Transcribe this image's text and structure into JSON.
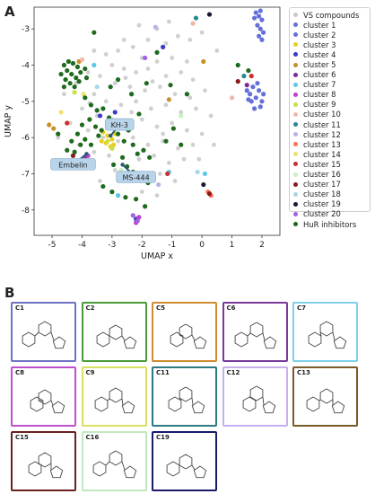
{
  "panels": {
    "a_label": "A",
    "b_label": "B"
  },
  "chart_data": {
    "type": "scatter",
    "title": "",
    "xlabel": "UMAP x",
    "ylabel": "UMAP y",
    "xlim": [
      -5.6,
      2.6
    ],
    "ylim": [
      -8.7,
      -2.4
    ],
    "xticks": [
      -5,
      -4,
      -3,
      -2,
      -1,
      0,
      1,
      2
    ],
    "yticks": [
      -3,
      -4,
      -5,
      -6,
      -7,
      -8
    ],
    "grid": false,
    "legend_position": "right",
    "annotations": [
      {
        "text": "KH-3",
        "x": -2.75,
        "y": -5.65,
        "target": [
          -3.05,
          -5.95
        ]
      },
      {
        "text": "Embelin",
        "x": -4.3,
        "y": -6.75,
        "target": [
          -3.85,
          -6.45
        ]
      },
      {
        "text": "MS-444",
        "x": -2.2,
        "y": -7.1,
        "target": [
          -2.65,
          -6.75
        ]
      }
    ],
    "series": [
      {
        "name": "VS compounds",
        "color": "#c8c8c8",
        "points": [
          [
            -2.1,
            -2.9
          ],
          [
            -1.5,
            -3.0
          ],
          [
            -2.6,
            -3.3
          ],
          [
            -2.3,
            -3.5
          ],
          [
            -1.8,
            -3.3
          ],
          [
            -1.2,
            -3.4
          ],
          [
            -0.8,
            -3.2
          ],
          [
            -0.4,
            -3.3
          ],
          [
            0.0,
            -3.1
          ],
          [
            -2.8,
            -3.6
          ],
          [
            -3.2,
            -3.7
          ],
          [
            -3.6,
            -3.6
          ],
          [
            -2.0,
            -3.8
          ],
          [
            -1.5,
            -3.9
          ],
          [
            -1.0,
            -3.8
          ],
          [
            -0.5,
            -3.9
          ],
          [
            -3.0,
            -4.0
          ],
          [
            -2.6,
            -4.1
          ],
          [
            -2.2,
            -4.2
          ],
          [
            -1.8,
            -4.1
          ],
          [
            -1.2,
            -4.3
          ],
          [
            -0.7,
            -4.2
          ],
          [
            -0.3,
            -4.4
          ],
          [
            -3.4,
            -4.3
          ],
          [
            -3.8,
            -4.2
          ],
          [
            -4.2,
            -4.5
          ],
          [
            -2.9,
            -4.5
          ],
          [
            -2.4,
            -4.6
          ],
          [
            -1.9,
            -4.7
          ],
          [
            -1.4,
            -4.6
          ],
          [
            -0.9,
            -4.8
          ],
          [
            -0.4,
            -4.9
          ],
          [
            0.1,
            -4.7
          ],
          [
            -3.6,
            -4.8
          ],
          [
            -3.2,
            -5.0
          ],
          [
            -2.7,
            -5.1
          ],
          [
            -2.2,
            -5.0
          ],
          [
            -1.7,
            -5.2
          ],
          [
            -1.2,
            -5.1
          ],
          [
            -0.7,
            -5.3
          ],
          [
            -0.2,
            -5.2
          ],
          [
            0.3,
            -5.4
          ],
          [
            -4.0,
            -5.2
          ],
          [
            -3.5,
            -5.4
          ],
          [
            -3.0,
            -5.5
          ],
          [
            -2.5,
            -5.6
          ],
          [
            -2.0,
            -5.5
          ],
          [
            -1.5,
            -5.7
          ],
          [
            -1.0,
            -5.6
          ],
          [
            -0.5,
            -5.8
          ],
          [
            0.0,
            -5.9
          ],
          [
            -4.4,
            -5.6
          ],
          [
            -3.8,
            -5.8
          ],
          [
            -3.3,
            -6.0
          ],
          [
            -2.8,
            -6.1
          ],
          [
            -2.3,
            -6.0
          ],
          [
            -1.8,
            -6.2
          ],
          [
            -1.3,
            -6.1
          ],
          [
            -0.8,
            -6.3
          ],
          [
            -0.3,
            -6.2
          ],
          [
            -4.1,
            -6.2
          ],
          [
            -3.6,
            -6.4
          ],
          [
            -3.1,
            -6.5
          ],
          [
            -2.1,
            -6.6
          ],
          [
            -1.6,
            -6.5
          ],
          [
            -1.1,
            -6.7
          ],
          [
            -0.6,
            -6.6
          ],
          [
            -2.9,
            -6.9
          ],
          [
            -2.4,
            -7.0
          ],
          [
            -1.9,
            -7.1
          ],
          [
            -1.4,
            -7.0
          ],
          [
            -3.4,
            -7.2
          ],
          [
            -2.0,
            -7.5
          ],
          [
            -1.5,
            -7.6
          ],
          [
            -4.6,
            -4.8
          ],
          [
            -1.1,
            -2.8
          ],
          [
            0.5,
            -3.6
          ],
          [
            -0.1,
            -6.6
          ],
          [
            -2.55,
            -4.35
          ],
          [
            -1.65,
            -4.45
          ],
          [
            -2.35,
            -5.3
          ],
          [
            -3.75,
            -5.05
          ],
          [
            -1.3,
            -5.9
          ],
          [
            -0.9,
            -7.2
          ],
          [
            0.4,
            -6.2
          ],
          [
            -4.8,
            -6.0
          ]
        ]
      },
      {
        "name": "cluster 1",
        "color": "#6470d8",
        "points": [
          [
            1.8,
            -2.55
          ],
          [
            1.9,
            -2.65
          ],
          [
            2.0,
            -2.75
          ],
          [
            1.85,
            -2.9
          ],
          [
            1.95,
            -3.0
          ],
          [
            2.05,
            -3.1
          ],
          [
            1.9,
            -3.2
          ],
          [
            2.0,
            -3.3
          ],
          [
            1.95,
            -2.5
          ],
          [
            1.75,
            -2.7
          ]
        ]
      },
      {
        "name": "cluster 2",
        "color": "#6470d8",
        "points": [
          [
            1.5,
            -4.7
          ],
          [
            1.6,
            -4.8
          ],
          [
            1.7,
            -4.6
          ],
          [
            1.8,
            -4.9
          ],
          [
            1.9,
            -4.7
          ],
          [
            2.0,
            -5.0
          ],
          [
            1.65,
            -5.0
          ],
          [
            1.75,
            -5.2
          ],
          [
            1.85,
            -4.5
          ],
          [
            1.55,
            -4.95
          ],
          [
            1.95,
            -5.15
          ],
          [
            2.05,
            -4.8
          ]
        ]
      },
      {
        "name": "cluster 3",
        "color": "#e8d020",
        "points": [
          [
            -3.3,
            -5.85
          ],
          [
            -3.15,
            -5.95
          ],
          [
            -3.0,
            -6.05
          ],
          [
            -3.2,
            -6.15
          ],
          [
            -3.05,
            -6.25
          ],
          [
            -2.9,
            -5.9
          ],
          [
            -3.35,
            -6.1
          ],
          [
            -2.95,
            -6.2
          ]
        ]
      },
      {
        "name": "cluster 4",
        "color": "#3a3ac8",
        "points": [
          [
            -2.9,
            -5.3
          ],
          [
            -3.4,
            -5.4
          ],
          [
            -1.3,
            -3.5
          ],
          [
            -2.2,
            -8.25
          ]
        ]
      },
      {
        "name": "cluster 5",
        "color": "#c89028",
        "points": [
          [
            -4.1,
            -3.9
          ],
          [
            -5.1,
            -5.65
          ],
          [
            -4.95,
            -5.75
          ],
          [
            0.05,
            -3.9
          ],
          [
            -1.1,
            -4.95
          ]
        ]
      },
      {
        "name": "cluster 6",
        "color": "#7c2a9a",
        "points": [
          [
            -3.9,
            -6.55
          ],
          [
            -3.75,
            -6.65
          ],
          [
            -3.85,
            -6.75
          ],
          [
            1.5,
            -4.55
          ]
        ]
      },
      {
        "name": "cluster 7",
        "color": "#5ac8e8",
        "points": [
          [
            -2.8,
            -7.6
          ],
          [
            -1.1,
            -6.95
          ],
          [
            0.1,
            -7.0
          ],
          [
            -3.6,
            -4.0
          ]
        ]
      },
      {
        "name": "cluster 8",
        "color": "#c040d0",
        "points": [
          [
            -3.95,
            -6.6
          ],
          [
            -3.8,
            -6.5
          ],
          [
            -2.1,
            -8.2
          ],
          [
            -2.2,
            -8.35
          ]
        ]
      },
      {
        "name": "cluster 9",
        "color": "#c8e040",
        "points": [
          [
            -3.15,
            -6.1
          ],
          [
            -3.0,
            -6.3
          ],
          [
            -4.25,
            -4.75
          ]
        ]
      },
      {
        "name": "cluster 10",
        "color": "#f0b8a8",
        "points": [
          [
            -0.3,
            -2.85
          ],
          [
            -4.0,
            -3.85
          ],
          [
            1.0,
            -4.9
          ]
        ]
      },
      {
        "name": "cluster 11",
        "color": "#2a8890",
        "points": [
          [
            -0.2,
            -2.7
          ],
          [
            1.4,
            -4.3
          ]
        ]
      },
      {
        "name": "cluster 12",
        "color": "#b8b0e8",
        "points": [
          [
            -1.55,
            -2.95
          ],
          [
            -1.45,
            -7.3
          ]
        ]
      },
      {
        "name": "cluster 13",
        "color": "#ff7050",
        "points": [
          [
            0.3,
            -7.6
          ],
          [
            0.2,
            -7.5
          ]
        ]
      },
      {
        "name": "cluster 14",
        "color": "#f0e070",
        "points": [
          [
            -4.7,
            -5.3
          ],
          [
            -3.95,
            -4.8
          ]
        ]
      },
      {
        "name": "cluster 15",
        "color": "#c83030",
        "points": [
          [
            -1.15,
            -7.0
          ],
          [
            -4.5,
            -5.6
          ],
          [
            1.65,
            -4.3
          ]
        ]
      },
      {
        "name": "cluster 16",
        "color": "#c8f0c0",
        "points": [
          [
            -2.7,
            -6.9
          ],
          [
            -0.7,
            -5.4
          ]
        ]
      },
      {
        "name": "cluster 17",
        "color": "#8a1818",
        "points": [
          [
            -4.3,
            -6.5
          ],
          [
            1.2,
            -4.45
          ],
          [
            0.25,
            -7.55
          ]
        ]
      },
      {
        "name": "cluster 18",
        "color": "#a8d8e8",
        "points": [
          [
            -0.15,
            -6.95
          ],
          [
            -3.5,
            -4.6
          ]
        ]
      },
      {
        "name": "cluster 19",
        "color": "#181830",
        "points": [
          [
            0.05,
            -7.3
          ],
          [
            0.25,
            -2.6
          ]
        ]
      },
      {
        "name": "cluster 20",
        "color": "#a060e0",
        "points": [
          [
            -2.3,
            -8.15
          ],
          [
            -2.15,
            -8.3
          ],
          [
            -1.9,
            -3.8
          ]
        ]
      },
      {
        "name": "HuR inhibitors",
        "color": "#1e6a1e",
        "points": [
          [
            -4.6,
            -4.0
          ],
          [
            -4.45,
            -3.9
          ],
          [
            -4.3,
            -3.95
          ],
          [
            -4.15,
            -4.05
          ],
          [
            -4.5,
            -4.15
          ],
          [
            -4.35,
            -4.25
          ],
          [
            -4.2,
            -4.35
          ],
          [
            -4.05,
            -4.2
          ],
          [
            -4.55,
            -4.4
          ],
          [
            -4.4,
            -4.5
          ],
          [
            -4.25,
            -4.6
          ],
          [
            -4.1,
            -4.45
          ],
          [
            -4.6,
            -4.6
          ],
          [
            -3.9,
            -4.1
          ],
          [
            -3.85,
            -4.35
          ],
          [
            -4.7,
            -4.25
          ],
          [
            -3.9,
            -4.9
          ],
          [
            -3.7,
            -5.1
          ],
          [
            -3.5,
            -5.25
          ],
          [
            -3.3,
            -5.2
          ],
          [
            -3.1,
            -5.45
          ],
          [
            -2.9,
            -5.55
          ],
          [
            -3.75,
            -5.5
          ],
          [
            -3.55,
            -5.7
          ],
          [
            -3.35,
            -5.8
          ],
          [
            -4.0,
            -5.65
          ],
          [
            -4.15,
            -5.9
          ],
          [
            -4.35,
            -6.1
          ],
          [
            -4.5,
            -6.35
          ],
          [
            -4.25,
            -6.4
          ],
          [
            -4.05,
            -6.2
          ],
          [
            -3.9,
            -6.05
          ],
          [
            -3.7,
            -6.2
          ],
          [
            -2.8,
            -5.9
          ],
          [
            -2.6,
            -6.1
          ],
          [
            -2.45,
            -5.8
          ],
          [
            -2.3,
            -6.2
          ],
          [
            -2.15,
            -6.45
          ],
          [
            -1.95,
            -6.35
          ],
          [
            -1.75,
            -6.55
          ],
          [
            -2.65,
            -6.55
          ],
          [
            -2.5,
            -6.8
          ],
          [
            -2.3,
            -6.95
          ],
          [
            -2.0,
            -7.05
          ],
          [
            -1.8,
            -7.25
          ],
          [
            -2.95,
            -6.75
          ],
          [
            -3.05,
            -4.6
          ],
          [
            -2.8,
            -4.4
          ],
          [
            -2.35,
            -4.8
          ],
          [
            -2.1,
            -5.35
          ],
          [
            -1.85,
            -4.5
          ],
          [
            -3.3,
            -7.35
          ],
          [
            -3.0,
            -7.5
          ],
          [
            -2.55,
            -7.65
          ],
          [
            -2.2,
            -7.7
          ],
          [
            -1.9,
            -7.9
          ],
          [
            -1.2,
            -6.1
          ],
          [
            -0.7,
            -6.2
          ],
          [
            -1.5,
            -3.65
          ],
          [
            -0.5,
            -4.8
          ],
          [
            1.2,
            -4.0
          ],
          [
            1.55,
            -4.15
          ],
          [
            -3.6,
            -3.1
          ],
          [
            -3.45,
            -5.95
          ],
          [
            -4.8,
            -5.9
          ],
          [
            -0.95,
            -5.75
          ],
          [
            -1.05,
            -4.55
          ]
        ]
      }
    ]
  },
  "legend_items": [
    {
      "label": "VS compounds",
      "color": "#c8c8c8"
    },
    {
      "label": "cluster 1",
      "color": "#6470d8"
    },
    {
      "label": "cluster 2",
      "color": "#6470d8"
    },
    {
      "label": "cluster 3",
      "color": "#e8d020"
    },
    {
      "label": "cluster 4",
      "color": "#3a3ac8"
    },
    {
      "label": "cluster 5",
      "color": "#c89028"
    },
    {
      "label": "cluster 6",
      "color": "#7c2a9a"
    },
    {
      "label": "cluster 7",
      "color": "#5ac8e8"
    },
    {
      "label": "cluster 8",
      "color": "#c040d0"
    },
    {
      "label": "cluster 9",
      "color": "#c8e040"
    },
    {
      "label": "cluster 10",
      "color": "#f0b8a8"
    },
    {
      "label": "cluster 11",
      "color": "#2a8890"
    },
    {
      "label": "cluster 12",
      "color": "#b8b0e8"
    },
    {
      "label": "cluster 13",
      "color": "#ff7050"
    },
    {
      "label": "cluster 14",
      "color": "#f0e070"
    },
    {
      "label": "cluster 15",
      "color": "#c83030"
    },
    {
      "label": "cluster 16",
      "color": "#c8f0c0"
    },
    {
      "label": "cluster 17",
      "color": "#8a1818"
    },
    {
      "label": "cluster 18",
      "color": "#a8d8e8"
    },
    {
      "label": "cluster 19",
      "color": "#181830"
    },
    {
      "label": "cluster 20",
      "color": "#a060e0"
    },
    {
      "label": "HuR inhibitors",
      "color": "#1e6a1e"
    }
  ],
  "structure_cards": [
    {
      "label": "C1",
      "color": "#6f72c4"
    },
    {
      "label": "C2",
      "color": "#4a9a3a"
    },
    {
      "label": "C5",
      "color": "#d08a30"
    },
    {
      "label": "C6",
      "color": "#7a3a9a"
    },
    {
      "label": "C7",
      "color": "#7fd0e8"
    },
    {
      "label": "C8",
      "color": "#c050d0"
    },
    {
      "label": "C9",
      "color": "#d8e060"
    },
    {
      "label": "C11",
      "color": "#2a7a80"
    },
    {
      "label": "C12",
      "color": "#c8b0f0"
    },
    {
      "label": "C13",
      "color": "#7a5a28"
    },
    {
      "label": "C15",
      "color": "#6a2020"
    },
    {
      "label": "C16",
      "color": "#c0e8c0"
    },
    {
      "label": "C19",
      "color": "#1a1a6a"
    }
  ]
}
